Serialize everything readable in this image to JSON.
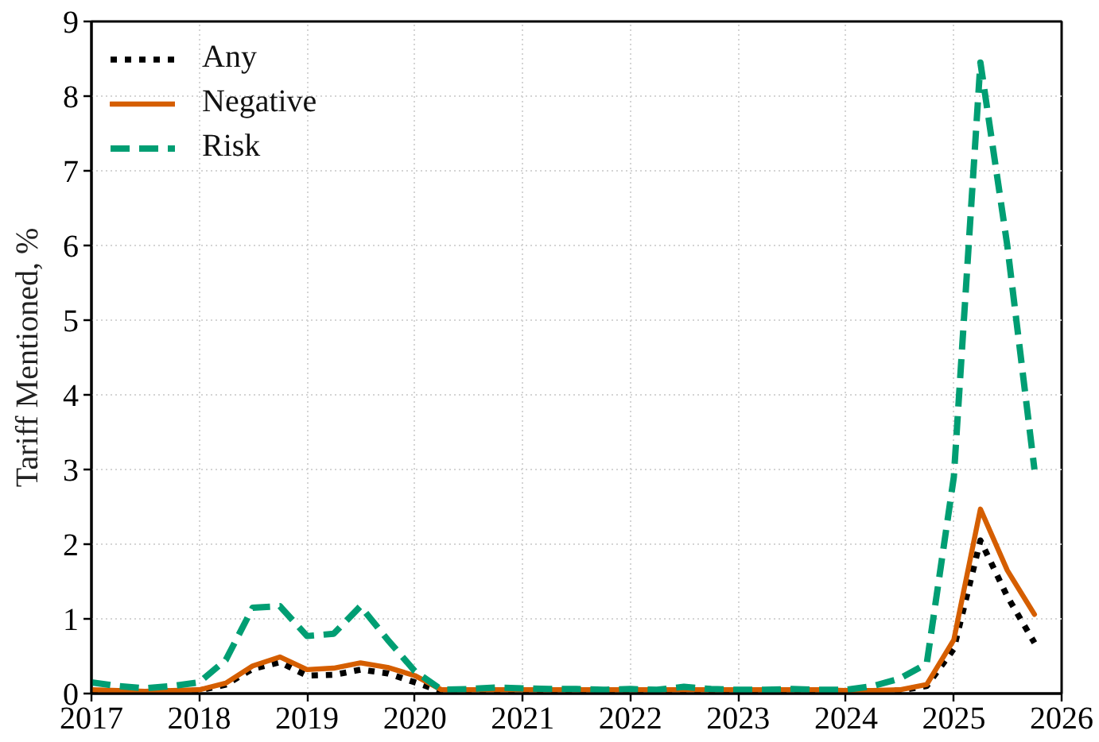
{
  "chart_data": {
    "type": "line",
    "ylabel": "Tariff Mentioned, %",
    "x": [
      "2017-01",
      "2017-04",
      "2017-07",
      "2017-10",
      "2018-01",
      "2018-04",
      "2018-07",
      "2018-10",
      "2019-01",
      "2019-04",
      "2019-07",
      "2019-10",
      "2020-01",
      "2020-04",
      "2020-07",
      "2020-10",
      "2021-01",
      "2021-04",
      "2021-07",
      "2021-10",
      "2022-01",
      "2022-04",
      "2022-07",
      "2022-10",
      "2023-01",
      "2023-04",
      "2023-07",
      "2023-10",
      "2024-01",
      "2024-04",
      "2024-07",
      "2024-10",
      "2025-01",
      "2025-04",
      "2025-07",
      "2025-10"
    ],
    "series": [
      {
        "name": "Any",
        "color": "#000000",
        "line_style": "dotted",
        "values": [
          0.03,
          0.03,
          0.02,
          0.03,
          0.04,
          0.12,
          0.33,
          0.42,
          0.24,
          0.25,
          0.32,
          0.27,
          0.15,
          0.03,
          0.03,
          0.03,
          0.03,
          0.03,
          0.03,
          0.03,
          0.03,
          0.03,
          0.03,
          0.03,
          0.03,
          0.03,
          0.03,
          0.03,
          0.03,
          0.03,
          0.04,
          0.1,
          0.6,
          2.05,
          1.3,
          0.68
        ]
      },
      {
        "name": "Negative",
        "color": "#d55e00",
        "line_style": "solid",
        "values": [
          0.05,
          0.04,
          0.03,
          0.04,
          0.05,
          0.14,
          0.37,
          0.49,
          0.32,
          0.34,
          0.41,
          0.35,
          0.24,
          0.05,
          0.05,
          0.05,
          0.05,
          0.05,
          0.05,
          0.05,
          0.05,
          0.05,
          0.05,
          0.05,
          0.05,
          0.05,
          0.05,
          0.05,
          0.04,
          0.04,
          0.05,
          0.12,
          0.72,
          2.47,
          1.65,
          1.06
        ]
      },
      {
        "name": "Risk",
        "color": "#009e73",
        "line_style": "dashed",
        "values": [
          0.15,
          0.1,
          0.07,
          0.1,
          0.15,
          0.45,
          1.15,
          1.17,
          0.77,
          0.8,
          1.17,
          0.72,
          0.3,
          0.05,
          0.06,
          0.08,
          0.07,
          0.06,
          0.06,
          0.05,
          0.06,
          0.05,
          0.09,
          0.06,
          0.05,
          0.05,
          0.06,
          0.05,
          0.05,
          0.1,
          0.2,
          0.4,
          2.9,
          8.45,
          6.0,
          3.0
        ]
      }
    ],
    "xlim": [
      "2017",
      "2026"
    ],
    "xticks": [
      "2017",
      "2018",
      "2019",
      "2020",
      "2021",
      "2022",
      "2023",
      "2024",
      "2025",
      "2026"
    ],
    "ylim": [
      0,
      9
    ],
    "yticks": [
      0,
      1,
      2,
      3,
      4,
      5,
      6,
      7,
      8,
      9
    ],
    "grid": true,
    "legend": "top left"
  }
}
